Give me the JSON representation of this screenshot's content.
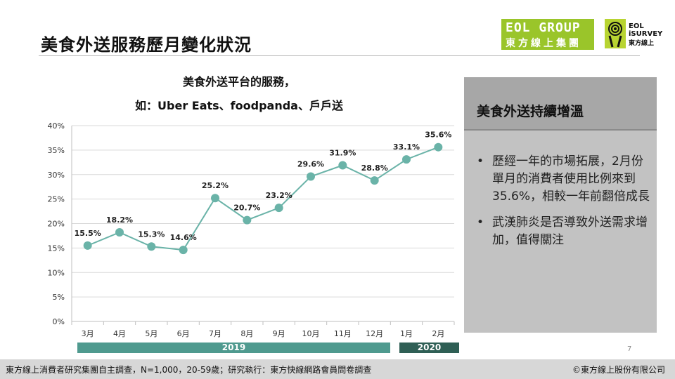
{
  "page": {
    "title": "美食外送服務歷月變化狀況",
    "page_number": "7"
  },
  "logos": {
    "eol_line1": "EOL GROUP",
    "eol_line2": "東方線上集團",
    "survey_line1": "EOL",
    "survey_line2": "iSURVEY",
    "survey_line3": "東方線上"
  },
  "chart_data": {
    "type": "line",
    "title": "美食外送平台的服務，",
    "subtitle": "如：Uber Eats、foodpanda、戶戶送",
    "categories": [
      "3月",
      "4月",
      "5月",
      "6月",
      "7月",
      "8月",
      "9月",
      "10月",
      "11月",
      "12月",
      "1月",
      "2月"
    ],
    "values": [
      15.5,
      18.2,
      15.3,
      14.6,
      25.2,
      20.7,
      23.2,
      29.6,
      31.9,
      28.8,
      33.1,
      35.6
    ],
    "data_labels": [
      "15.5%",
      "18.2%",
      "15.3%",
      "14.6%",
      "25.2%",
      "20.7%",
      "23.2%",
      "29.6%",
      "31.9%",
      "28.8%",
      "33.1%",
      "35.6%"
    ],
    "y_ticks": [
      "0%",
      "5%",
      "10%",
      "15%",
      "20%",
      "25%",
      "30%",
      "35%",
      "40%"
    ],
    "ylim": [
      0,
      40
    ],
    "y_unit": "%",
    "grid": true,
    "legend": "none",
    "line_color": "#6ab3a8",
    "year_groups": [
      {
        "label": "2019",
        "months": [
          "3月",
          "4月",
          "5月",
          "6月",
          "7月",
          "8月",
          "9月",
          "10月",
          "11月",
          "12月"
        ],
        "color": "#4f9a8f"
      },
      {
        "label": "2020",
        "months": [
          "1月",
          "2月"
        ],
        "color": "#2f5f55"
      }
    ]
  },
  "panel": {
    "title": "美食外送持續增溫",
    "bullets": [
      "歷經一年的市場拓展，2月份單月的消費者使用比例來到35.6%，相較一年前翻倍成長",
      "武漢肺炎是否導致外送需求增加，值得關注"
    ],
    "bullet_symbol": "•"
  },
  "footer": {
    "source": "東方線上消費者研究集團自主調查，N=1,000，20-59歲；研究執行：東方快線網路會員問卷調查",
    "copyright": "©東方線上股份有限公司"
  },
  "colors": {
    "accent_green": "#9ac52a",
    "panel_bg": "#c2c2c2",
    "panel_head": "#a7a7a7"
  }
}
